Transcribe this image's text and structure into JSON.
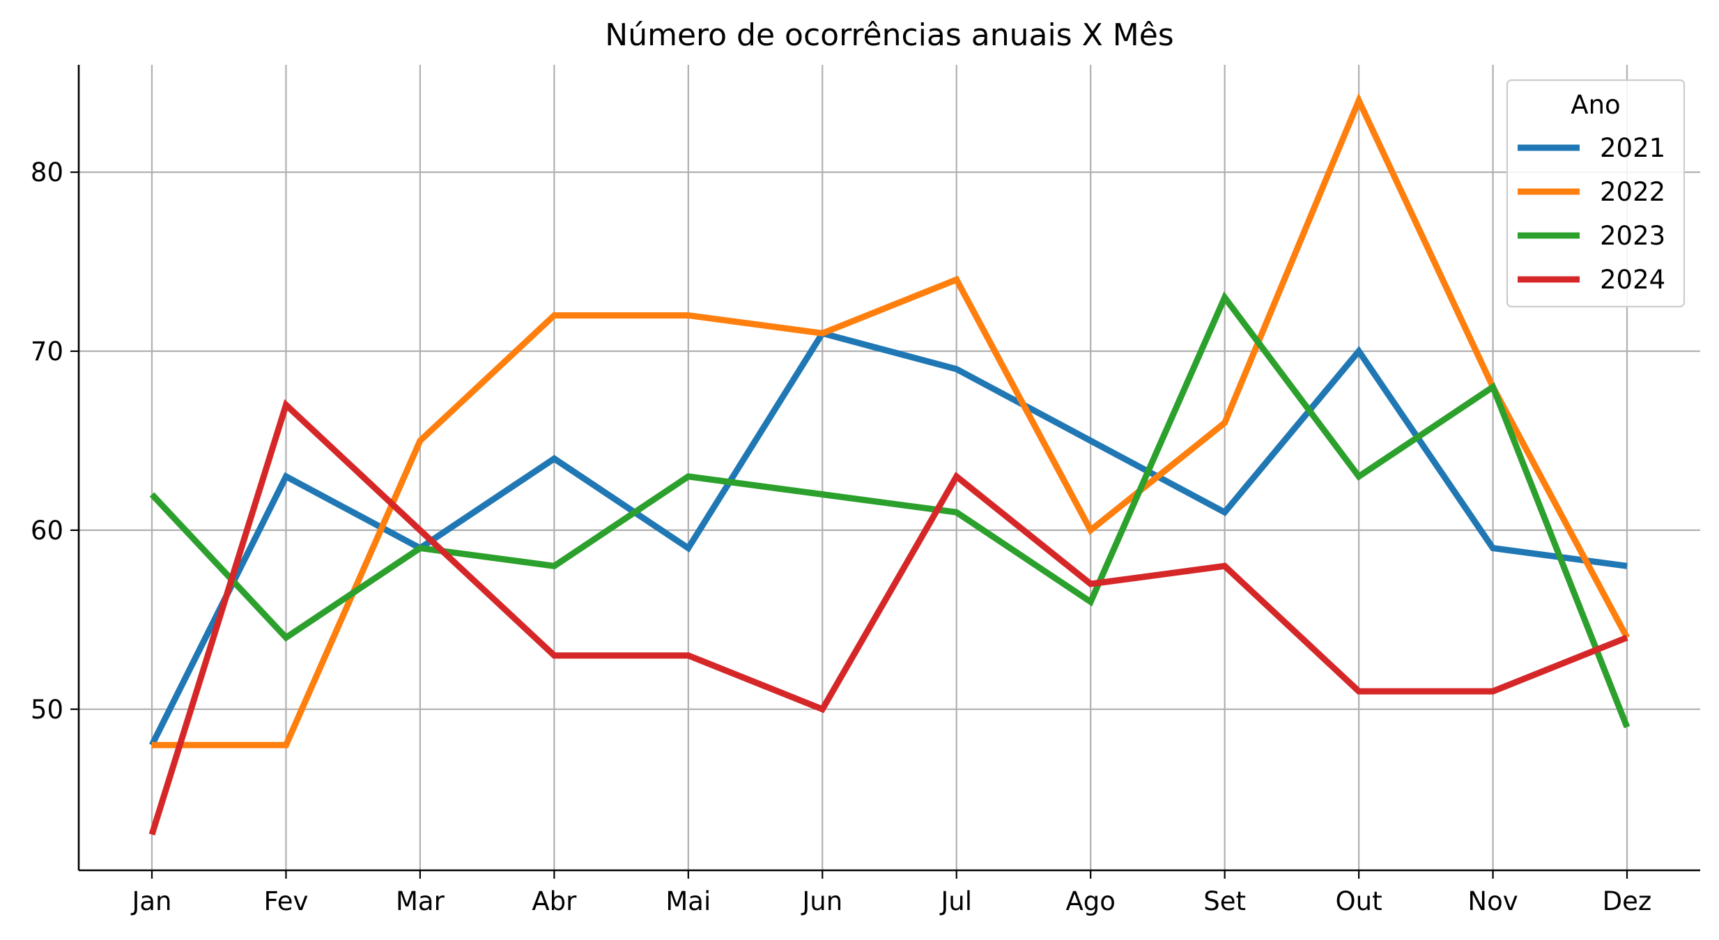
{
  "chart_data": {
    "type": "line",
    "title": "Número de ocorrências anuais X Mês",
    "xlabel": "",
    "ylabel": "",
    "categories": [
      "Jan",
      "Fev",
      "Mar",
      "Abr",
      "Mai",
      "Jun",
      "Jul",
      "Ago",
      "Set",
      "Out",
      "Nov",
      "Dez"
    ],
    "yticks": [
      50,
      60,
      70,
      80
    ],
    "ylim": [
      41,
      86
    ],
    "grid": true,
    "legend": {
      "title": "Ano",
      "placement": "top-right"
    },
    "series": [
      {
        "name": "2021",
        "color": "#1f77b4",
        "values": [
          48,
          63,
          59,
          64,
          59,
          71,
          69,
          65,
          61,
          70,
          59,
          58
        ]
      },
      {
        "name": "2022",
        "color": "#ff7f0e",
        "values": [
          48,
          48,
          65,
          72,
          72,
          71,
          74,
          60,
          66,
          84,
          68,
          54
        ]
      },
      {
        "name": "2023",
        "color": "#2ca02c",
        "values": [
          62,
          54,
          59,
          58,
          63,
          62,
          61,
          56,
          73,
          63,
          68,
          49
        ]
      },
      {
        "name": "2024",
        "color": "#d62728",
        "values": [
          43,
          67,
          60,
          53,
          53,
          50,
          63,
          57,
          58,
          51,
          51,
          54
        ]
      }
    ]
  }
}
